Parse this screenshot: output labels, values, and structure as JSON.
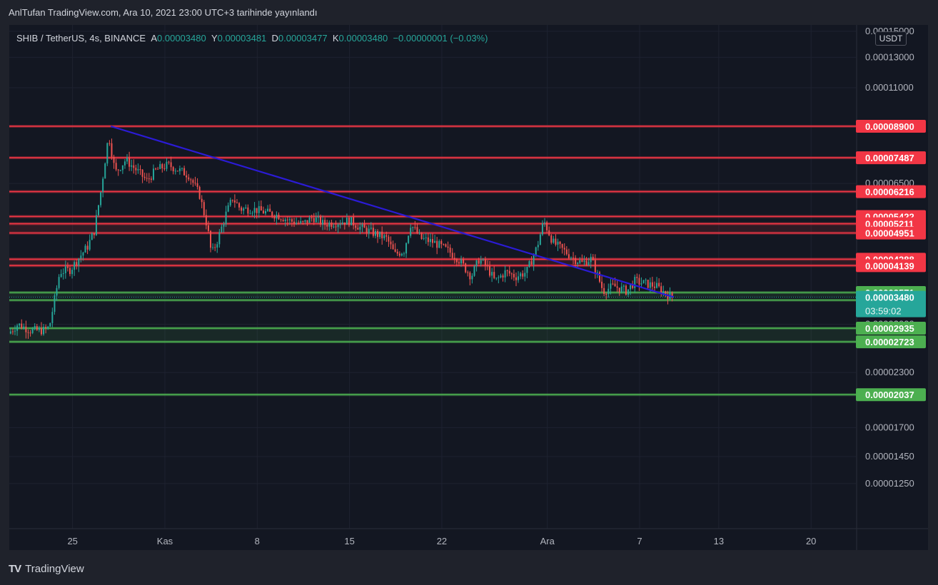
{
  "header": {
    "title": "AnlTufan TradingView.com, Ara 10, 2021 23:00 UTC+3 tarihinde yayınlandı"
  },
  "legend": {
    "symbol": "SHIB / TetherUS, 4s, BINANCE",
    "open_key": "A",
    "open": "0.00003480",
    "high_key": "Y",
    "high": "0.00003481",
    "low_key": "D",
    "low": "0.00003477",
    "close_key": "K",
    "close": "0.00003480",
    "change": "−0.00000001 (−0.03%)"
  },
  "axis": {
    "currency": "USDT"
  },
  "footer": {
    "brand": "TradingView"
  },
  "colors": {
    "background": "#131722",
    "up": "#26a69a",
    "down": "#ef5350",
    "resistance": "#f23645",
    "support": "#4caf50",
    "trendline": "#2b1bd6"
  },
  "chart_data": {
    "type": "candlestick",
    "scale": "log",
    "y_ticks": [
      0.00015,
      0.00013,
      0.00011,
      6.5e-05,
      3e-05,
      2.3e-05,
      1.7e-05,
      1.45e-05,
      1.25e-05
    ],
    "y_tick_labels": [
      "0.00015000",
      "0.00013000",
      "0.00011000",
      "0.00006500",
      "0.00003000",
      "0.00002300",
      "0.00001700",
      "0.00001450",
      "0.00001250"
    ],
    "x_labels": [
      "25",
      "Kas",
      "8",
      "15",
      "22",
      "Ara",
      "7",
      "13",
      "20"
    ],
    "x_label_days": [
      25,
      32,
      39,
      46,
      53,
      61,
      68,
      74,
      81
    ],
    "x_range_days": [
      20.2,
      84.4
    ],
    "resistance_levels": [
      8.9e-05,
      7.487e-05,
      6.216e-05,
      5.422e-05,
      5.211e-05,
      4.951e-05,
      4.288e-05,
      4.139e-05
    ],
    "resistance_labels": [
      "0.00008900",
      "0.00007487",
      "0.00006216",
      "0.00005422",
      "0.00005211",
      "0.00004951",
      "0.00004288",
      "0.00004139"
    ],
    "support_levels": [
      3.571e-05,
      3.424e-05,
      2.935e-05,
      2.723e-05,
      2.037e-05
    ],
    "support_labels": [
      "0.00003571",
      "0.00003424",
      "0.00002935",
      "0.00002723",
      "0.00002037"
    ],
    "last_price": 3.48e-05,
    "last_price_label": "0.00003480",
    "countdown": "03:59:02",
    "trendline": {
      "from": {
        "day": 27.9,
        "price": 8.9e-05
      },
      "to": {
        "day": 70.6,
        "price": 3.48e-05
      }
    },
    "price_path": [
      [
        20.3,
        2.85e-05
      ],
      [
        21.0,
        3e-05
      ],
      [
        22.0,
        2.9e-05
      ],
      [
        23.0,
        2.9e-05
      ],
      [
        23.4,
        2.95e-05
      ],
      [
        24.2,
        4e-05
      ],
      [
        25.0,
        4.05e-05
      ],
      [
        25.6,
        4.3e-05
      ],
      [
        26.3,
        4.6e-05
      ],
      [
        26.8,
        5e-05
      ],
      [
        27.3,
        6.2e-05
      ],
      [
        27.9,
        8.5e-05
      ],
      [
        28.4,
        6.9e-05
      ],
      [
        29.2,
        7.4e-05
      ],
      [
        30.0,
        7e-05
      ],
      [
        30.8,
        6.6e-05
      ],
      [
        31.5,
        7e-05
      ],
      [
        32.4,
        7.2e-05
      ],
      [
        33.2,
        7e-05
      ],
      [
        34.0,
        6.8e-05
      ],
      [
        34.8,
        6.1e-05
      ],
      [
        35.4,
        5.1e-05
      ],
      [
        35.7,
        4.4e-05
      ],
      [
        36.2,
        4.8e-05
      ],
      [
        36.8,
        5.5e-05
      ],
      [
        37.3,
        6e-05
      ],
      [
        37.9,
        5.65e-05
      ],
      [
        38.8,
        5.65e-05
      ],
      [
        39.8,
        5.55e-05
      ],
      [
        40.8,
        5.45e-05
      ],
      [
        41.6,
        5.3e-05
      ],
      [
        42.6,
        5.2e-05
      ],
      [
        43.4,
        5.4e-05
      ],
      [
        44.2,
        5.2e-05
      ],
      [
        45.2,
        5.25e-05
      ],
      [
        46.2,
        5.3e-05
      ],
      [
        47.0,
        5.1e-05
      ],
      [
        48.0,
        4.95e-05
      ],
      [
        49.0,
        4.8e-05
      ],
      [
        49.6,
        4.4e-05
      ],
      [
        50.3,
        4.5e-05
      ],
      [
        50.8,
        5.2e-05
      ],
      [
        51.6,
        4.8e-05
      ],
      [
        52.6,
        4.7e-05
      ],
      [
        53.6,
        4.5e-05
      ],
      [
        54.4,
        4.3e-05
      ],
      [
        55.4,
        3.9e-05
      ],
      [
        56.0,
        4.3e-05
      ],
      [
        56.6,
        4.1e-05
      ],
      [
        57.2,
        3.8e-05
      ],
      [
        58.0,
        4e-05
      ],
      [
        58.8,
        3.9e-05
      ],
      [
        59.6,
        4e-05
      ],
      [
        60.4,
        4.6e-05
      ],
      [
        60.9,
        5.3e-05
      ],
      [
        61.6,
        4.7e-05
      ],
      [
        62.4,
        4.5e-05
      ],
      [
        63.2,
        4.3e-05
      ],
      [
        63.8,
        4.2e-05
      ],
      [
        64.5,
        4.3e-05
      ],
      [
        65.0,
        3.9e-05
      ],
      [
        65.4,
        3.6e-05
      ],
      [
        66.2,
        3.7e-05
      ],
      [
        67.2,
        3.6e-05
      ],
      [
        67.8,
        3.8e-05
      ],
      [
        68.6,
        3.75e-05
      ],
      [
        69.4,
        3.7e-05
      ],
      [
        70.0,
        3.58e-05
      ],
      [
        70.6,
        3.48e-05
      ]
    ]
  }
}
